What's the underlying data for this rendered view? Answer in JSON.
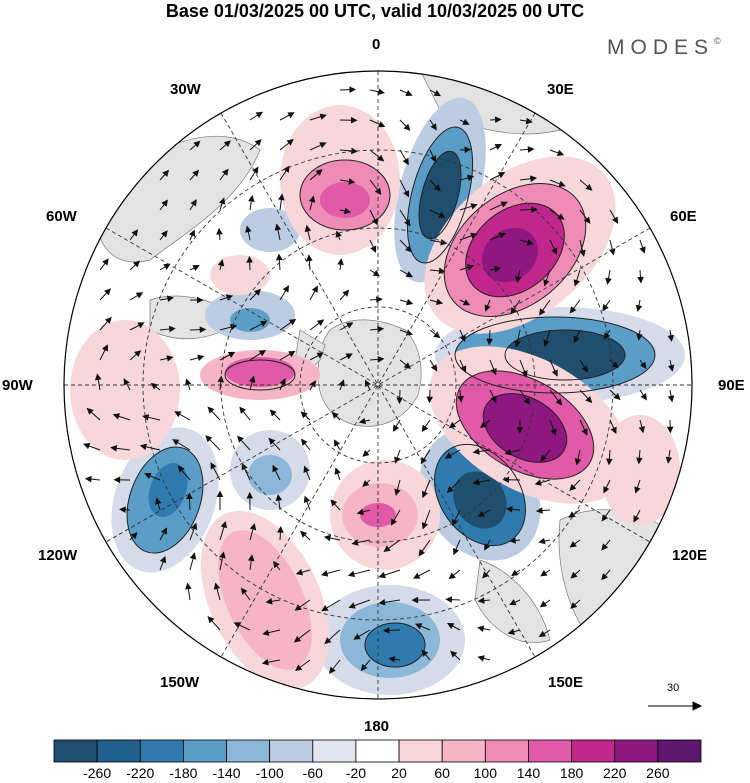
{
  "title": "Base 01/03/2025 00 UTC, valid 10/03/2025 00 UTC",
  "brand": {
    "text": "MODES",
    "mark": "©"
  },
  "longitude_labels": {
    "top": "0",
    "lon30e": "30E",
    "lon60e": "60E",
    "lon90e": "90E",
    "lon120e": "120E",
    "lon150e": "150E",
    "bottom": "180",
    "lon150w": "150W",
    "lon120w": "120W",
    "lon90w": "90W",
    "lon60w": "60W",
    "lon30w": "30W"
  },
  "reference_vector": {
    "label": "30"
  },
  "colorbar": {
    "levels": [
      "-260",
      "-220",
      "-180",
      "-140",
      "-100",
      "-60",
      "-20",
      "20",
      "60",
      "100",
      "140",
      "180",
      "220",
      "260"
    ],
    "colors": [
      "#1f4e6e",
      "#215f8d",
      "#2f7bb0",
      "#5a9dc7",
      "#8bb7d8",
      "#bccde3",
      "#e3e6ef",
      "#ffffff",
      "#f8d7da",
      "#f5b5c7",
      "#ef8cb6",
      "#e05aa7",
      "#c1268c",
      "#8e1780",
      "#5e166e"
    ]
  },
  "anomaly_colors": {
    "neg_strong": "#1f4e6e",
    "neg_mid": "#2f7bb0",
    "neg_light": "#8bb7d8",
    "neg_faint": "#d6dbea",
    "pos_faint": "#f8d7da",
    "pos_light": "#f5b5c7",
    "pos_mid": "#e05aa7",
    "pos_strong": "#8e1780",
    "land": "#e6e6e6"
  }
}
